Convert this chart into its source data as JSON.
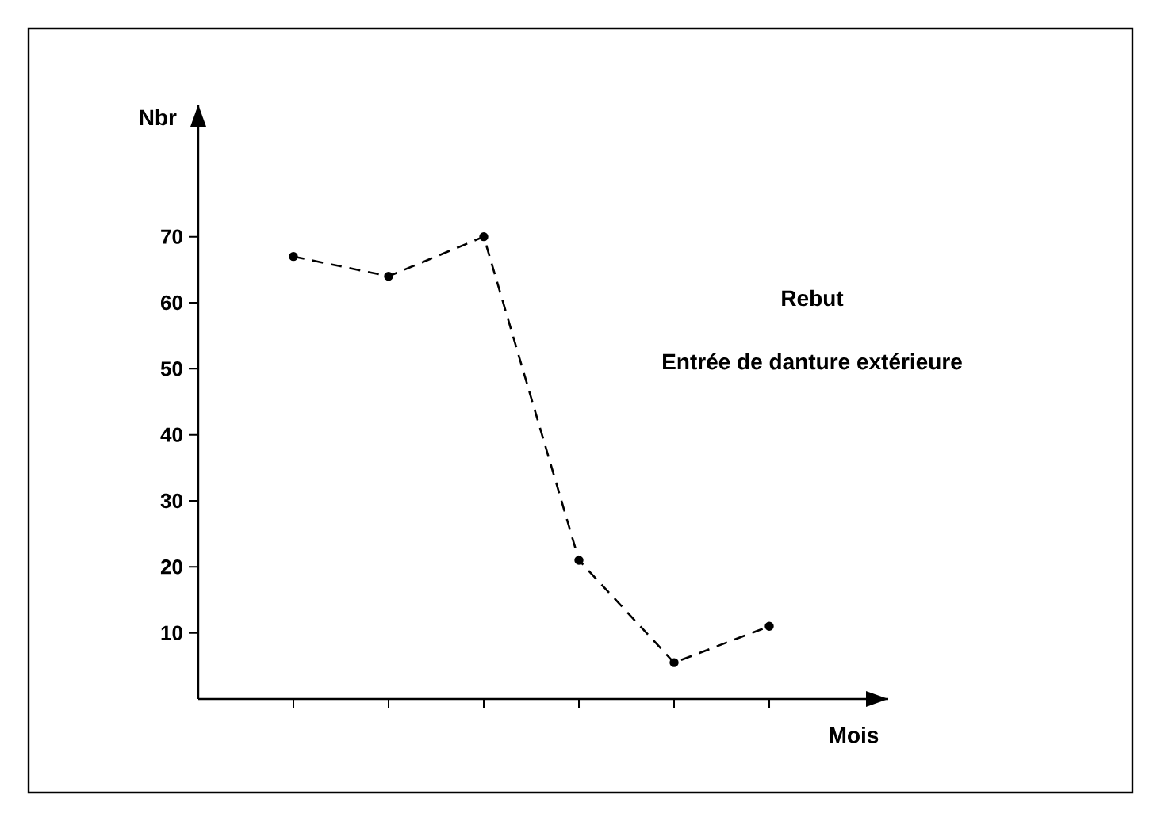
{
  "chart_data": {
    "type": "line",
    "categories": [
      null,
      null,
      null,
      null,
      null,
      null
    ],
    "values": [
      67,
      64,
      70,
      21,
      5.5,
      11
    ],
    "color": "#000000",
    "marker": "circle",
    "line_style": "dashed",
    "ylim": [
      0,
      90
    ],
    "yticks": [
      10,
      20,
      30,
      40,
      50,
      60,
      70
    ],
    "xlabel": "Mois",
    "ylabel": "Nbr",
    "annotations": [
      "Rebut",
      "Entrée de danture extérieure"
    ],
    "grid": false,
    "legend": false
  }
}
